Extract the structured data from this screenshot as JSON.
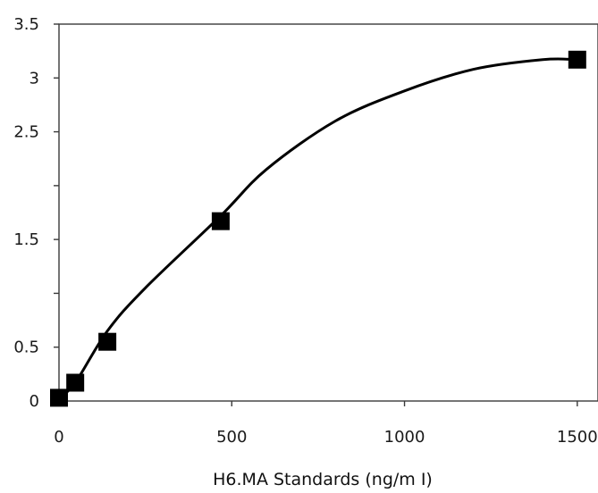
{
  "chart_data": {
    "type": "line",
    "title": "",
    "xlabel": "H6.MA Standards (ng/m I)",
    "ylabel": "",
    "xlim": [
      0,
      1560
    ],
    "ylim": [
      0,
      3.5
    ],
    "x_ticks": [
      0,
      500,
      1000,
      1500
    ],
    "x_tick_labels": [
      "0",
      "500",
      "1000",
      "1500"
    ],
    "y_ticks": [
      0,
      0.5,
      1,
      1.5,
      2,
      2.5,
      3,
      3.5
    ],
    "y_tick_labels": [
      "0",
      "0.5",
      "",
      "1.5",
      "",
      "2.5",
      "3",
      "3.5"
    ],
    "grid": false,
    "legend": "none",
    "series": [
      {
        "x": [
          0,
          47,
          140,
          468,
          1500
        ],
        "y": [
          0.03,
          0.17,
          0.55,
          1.67,
          3.17
        ],
        "marker": "square",
        "color": "#000000"
      }
    ],
    "curve": {
      "x": [
        0,
        47,
        140,
        250,
        468,
        600,
        800,
        1000,
        1200,
        1400,
        1500
      ],
      "y": [
        0.03,
        0.17,
        0.65,
        1.05,
        1.72,
        2.15,
        2.6,
        2.88,
        3.08,
        3.17,
        3.17
      ]
    }
  }
}
